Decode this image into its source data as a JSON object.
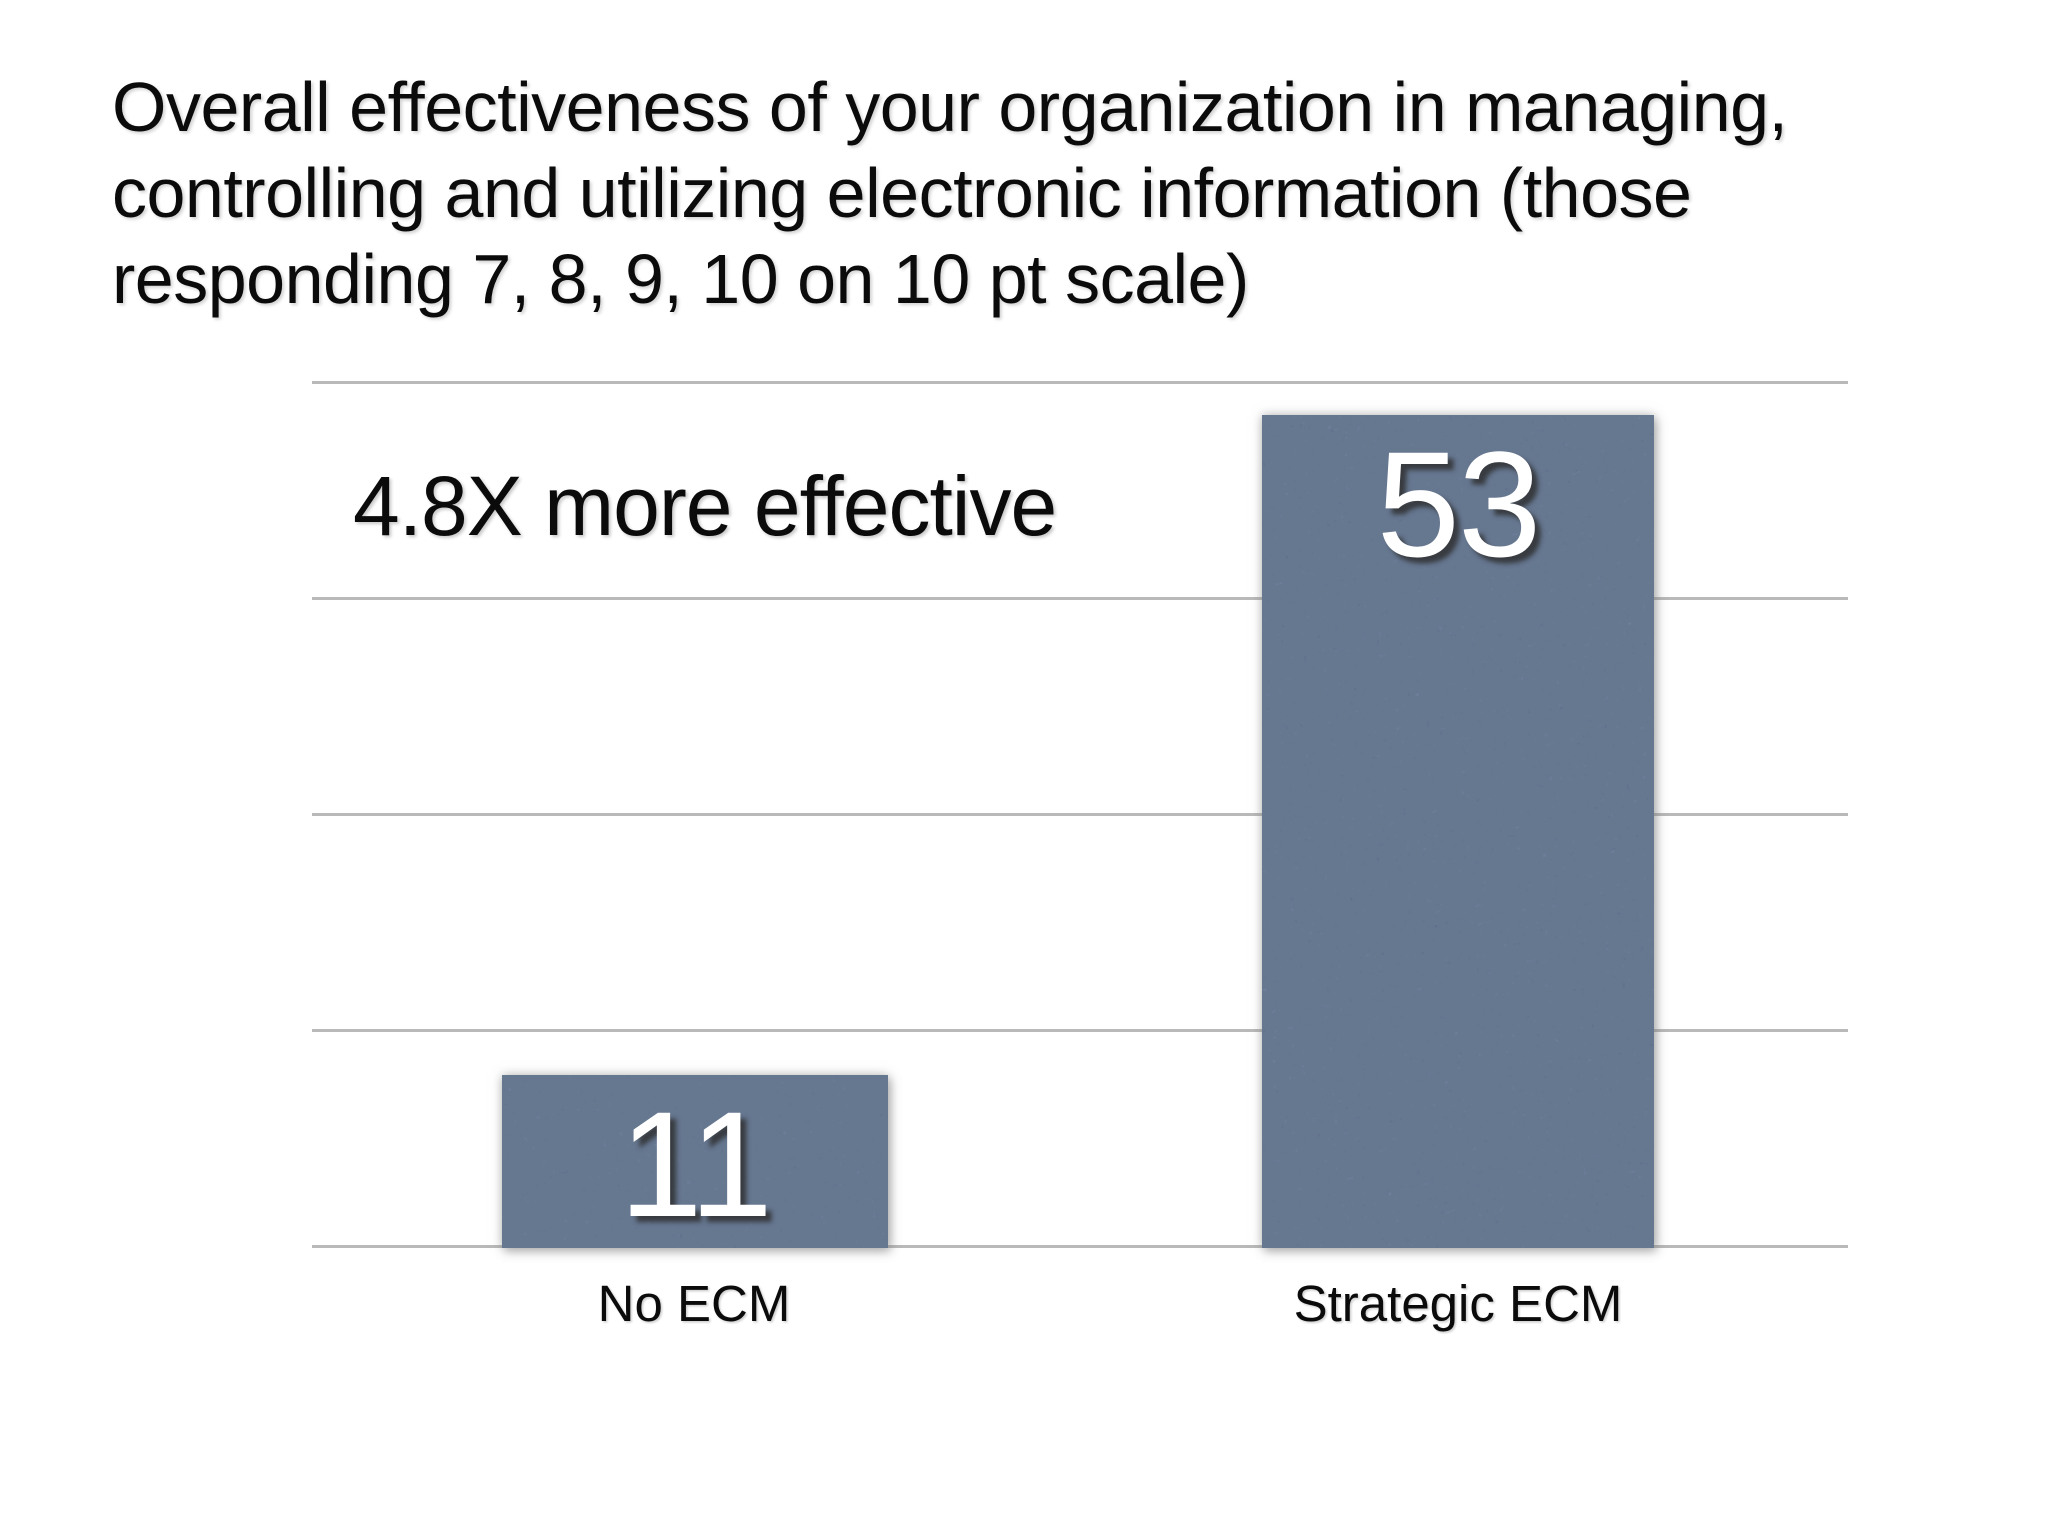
{
  "slide": {
    "title_lines": [
      "Overall effectiveness of your organization in managing,",
      "controlling and utilizing electronic information (those",
      "responding 7, 8, 9, 10 on 10 pt scale)"
    ]
  },
  "chart_data": {
    "type": "bar",
    "title": "Overall effectiveness of your organization in managing, controlling and utilizing electronic information (those responding 7, 8, 9, 10 on 10 pt scale)",
    "categories": [
      "No ECM",
      "Strategic ECM"
    ],
    "values": [
      11,
      53
    ],
    "annotation": "4.8X more effective",
    "xlabel": "",
    "ylabel": "",
    "ylim": [
      0,
      55
    ],
    "gridline_count": 5,
    "grid": true,
    "legend": false,
    "bar_color": "#667C9E",
    "gridline_color": "#B9B9B9",
    "value_label_color": "#FFFFFF",
    "text_color": "#0B0B0B"
  }
}
